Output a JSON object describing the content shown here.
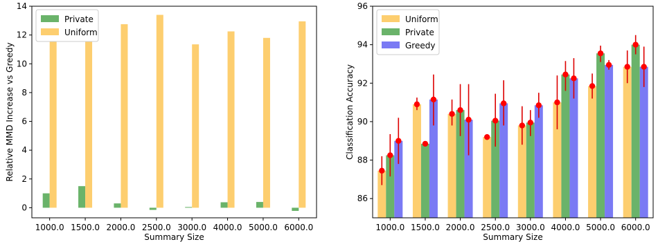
{
  "colors": {
    "private": "#5aab5a",
    "uniform": "#fdc95f",
    "greedy": "#6b6bf3",
    "point": "#ff0000",
    "errorbar": "#dd0000"
  },
  "chart_data": [
    {
      "type": "bar",
      "title": "",
      "xlabel": "Summary Size",
      "ylabel": "Relative MMD Increase vs Greedy",
      "categories": [
        "1000.0",
        "1500.0",
        "2000.0",
        "2500.0",
        "3000.0",
        "4000.0",
        "5000.0",
        "6000.0"
      ],
      "ylim": [
        -0.7,
        14
      ],
      "yticks": [
        0,
        2,
        4,
        6,
        8,
        10,
        12,
        14
      ],
      "legend_position": "top-left",
      "grid": false,
      "series": [
        {
          "name": "Private",
          "color_key": "private",
          "values": [
            1.0,
            1.5,
            0.3,
            -0.15,
            0.05,
            0.38,
            0.4,
            -0.22
          ]
        },
        {
          "name": "Uniform",
          "color_key": "uniform",
          "values": [
            12.45,
            12.3,
            12.75,
            13.4,
            11.35,
            12.25,
            11.8,
            12.95
          ]
        }
      ]
    },
    {
      "type": "bar",
      "title": "",
      "xlabel": "Summary Size",
      "ylabel": "Classification Accuracy",
      "categories": [
        "1000.0",
        "1500.0",
        "2000.0",
        "2500.0",
        "3000.0",
        "4000.0",
        "5000.0",
        "6000.0"
      ],
      "ylim": [
        85,
        96
      ],
      "yticks": [
        86,
        88,
        90,
        92,
        94,
        96
      ],
      "legend_position": "top-left",
      "grid": false,
      "series": [
        {
          "name": "Uniform",
          "color_key": "uniform",
          "values": [
            87.45,
            90.9,
            90.4,
            89.2,
            89.8,
            91.0,
            91.85,
            92.85
          ],
          "err_low": [
            86.7,
            90.6,
            89.8,
            89.05,
            88.8,
            89.6,
            91.2,
            92.0
          ],
          "err_high": [
            88.2,
            91.25,
            91.15,
            89.35,
            90.8,
            92.4,
            92.5,
            93.7
          ]
        },
        {
          "name": "Private",
          "color_key": "private",
          "values": [
            88.25,
            88.85,
            90.6,
            90.05,
            89.95,
            92.45,
            93.55,
            94.0
          ],
          "err_low": [
            87.15,
            88.75,
            89.25,
            88.7,
            89.25,
            91.6,
            93.1,
            93.5
          ],
          "err_high": [
            89.35,
            88.95,
            91.95,
            91.45,
            90.6,
            93.15,
            93.95,
            94.5
          ]
        },
        {
          "name": "Greedy",
          "color_key": "greedy",
          "values": [
            89.0,
            91.15,
            90.1,
            90.95,
            90.85,
            92.25,
            92.95,
            92.85
          ],
          "err_low": [
            87.8,
            89.8,
            88.25,
            89.8,
            90.2,
            91.2,
            92.7,
            91.8
          ],
          "err_high": [
            90.2,
            92.45,
            91.95,
            92.15,
            91.5,
            93.3,
            93.2,
            93.9
          ]
        }
      ]
    }
  ]
}
